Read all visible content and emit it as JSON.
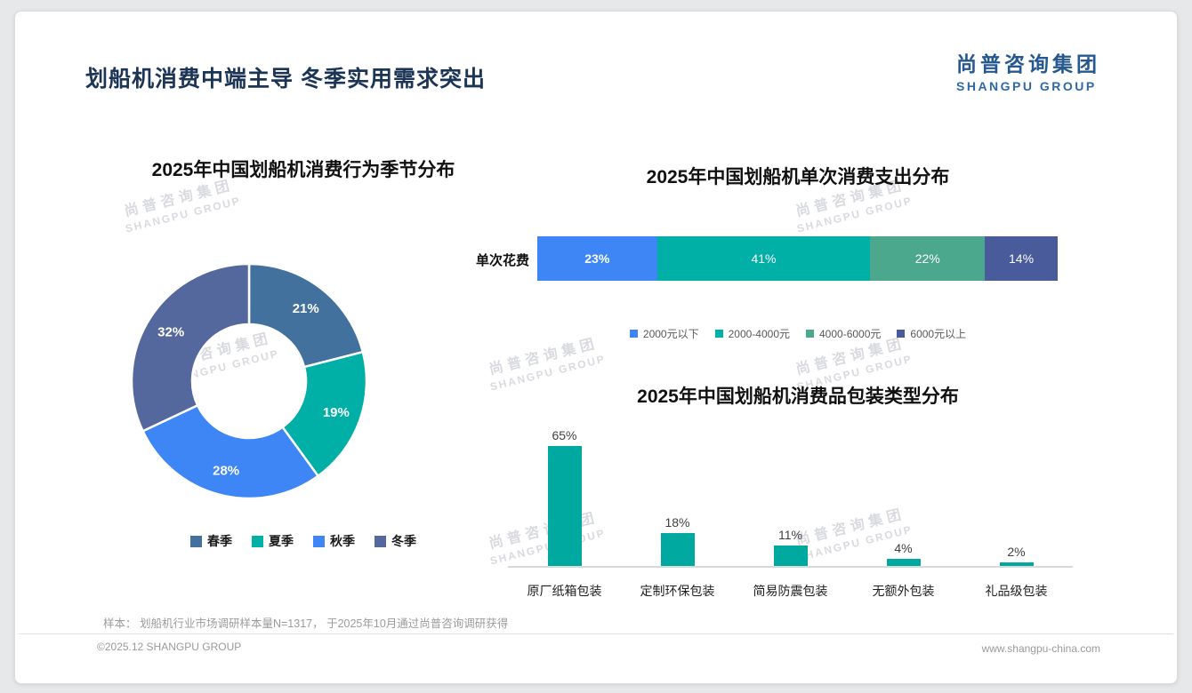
{
  "page": {
    "title": "划船机消费中端主导 冬季实用需求突出",
    "logo": {
      "cn": "尚普咨询集团",
      "en": "SHANGPU GROUP"
    },
    "watermark": {
      "cn": "尚普咨询集团",
      "en": "SHANGPU GROUP"
    },
    "footer_note": "样本： 划船机行业市场调研样本量N=1317， 于2025年10月通过尚普咨询调研获得",
    "footer_left": "©2025.12 SHANGPU GROUP",
    "footer_right": "www.shangpu-china.com"
  },
  "chart_data": [
    {
      "type": "pie",
      "subtype": "donut",
      "title": "2025年中国划船机消费行为季节分布",
      "categories": [
        "春季",
        "夏季",
        "秋季",
        "冬季"
      ],
      "values": [
        21,
        19,
        28,
        32
      ],
      "labels": [
        "21%",
        "19%",
        "28%",
        "32%"
      ],
      "colors": [
        "#41719C",
        "#00AFA5",
        "#3E86F5",
        "#54689E"
      ],
      "legend_position": "bottom",
      "start_angle_deg": 0,
      "direction": "clockwise"
    },
    {
      "type": "bar",
      "subtype": "stacked-horizontal",
      "title": "2025年中国划船机单次消费支出分布",
      "row_label": "单次花费",
      "series": [
        {
          "name": "2000元以下",
          "value": 23,
          "label": "23%",
          "color": "#3E86F5"
        },
        {
          "name": "2000-4000元",
          "value": 41,
          "label": "41%",
          "color": "#00AFA5"
        },
        {
          "name": "4000-6000元",
          "value": 22,
          "label": "22%",
          "color": "#4CA88D"
        },
        {
          "name": "6000元以上",
          "value": 14,
          "label": "14%",
          "color": "#4A5B9B"
        }
      ],
      "xlim": [
        0,
        100
      ],
      "legend_position": "bottom"
    },
    {
      "type": "bar",
      "subtype": "vertical",
      "title": "2025年中国划船机消费品包装类型分布",
      "categories": [
        "原厂纸箱包装",
        "定制环保包装",
        "简易防震包装",
        "无额外包装",
        "礼品级包装"
      ],
      "values": [
        65,
        18,
        11,
        4,
        2
      ],
      "data_labels": [
        "65%",
        "18%",
        "11%",
        "4%",
        "2%"
      ],
      "color": "#00A9A0",
      "ylim": [
        0,
        70
      ],
      "grid": false,
      "legend_position": "none"
    }
  ]
}
